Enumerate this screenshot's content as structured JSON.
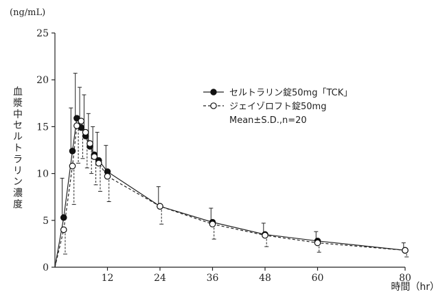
{
  "chart_data": {
    "type": "line",
    "y_unit": "(ng/mL)",
    "ylabel": "血漿中セルトラリン濃度",
    "xlabel": "時間（hr）",
    "xlim": [
      0,
      80
    ],
    "ylim": [
      0,
      25
    ],
    "x_ticks": [
      12,
      24,
      36,
      48,
      60,
      80
    ],
    "y_ticks": [
      0,
      5,
      10,
      15,
      20,
      25
    ],
    "legend_position": "top-right",
    "legend_note": "Mean±S.D.,n=20",
    "series": [
      {
        "name": "セルトラリン錠50mg「TCK」",
        "marker": "filled-circle",
        "line": "solid",
        "x": [
          2,
          4,
          5,
          6,
          7,
          8,
          9,
          10,
          12,
          24,
          36,
          48,
          60,
          80
        ],
        "y": [
          5.3,
          12.4,
          15.9,
          14.9,
          14.0,
          12.9,
          12.0,
          11.4,
          10.2,
          6.5,
          4.8,
          3.5,
          2.8,
          1.8
        ],
        "sd": [
          4.2,
          4.6,
          4.8,
          4.3,
          4.4,
          3.5,
          3.0,
          3.0,
          2.8,
          2.1,
          1.5,
          1.2,
          1.0,
          0.8
        ]
      },
      {
        "name": "ジェイゾロフト錠50mg",
        "marker": "open-circle",
        "line": "dashed",
        "x": [
          2,
          4,
          5,
          6,
          7,
          8,
          9,
          10,
          12,
          24,
          36,
          48,
          60,
          80
        ],
        "y": [
          4.0,
          10.8,
          15.1,
          15.6,
          14.4,
          13.2,
          11.8,
          11.1,
          9.7,
          6.5,
          4.6,
          3.4,
          2.6,
          1.8
        ],
        "sd": [
          2.6,
          4.1,
          4.0,
          4.0,
          3.8,
          3.2,
          3.0,
          3.0,
          2.7,
          1.9,
          1.6,
          1.2,
          1.0,
          0.7
        ]
      }
    ]
  }
}
